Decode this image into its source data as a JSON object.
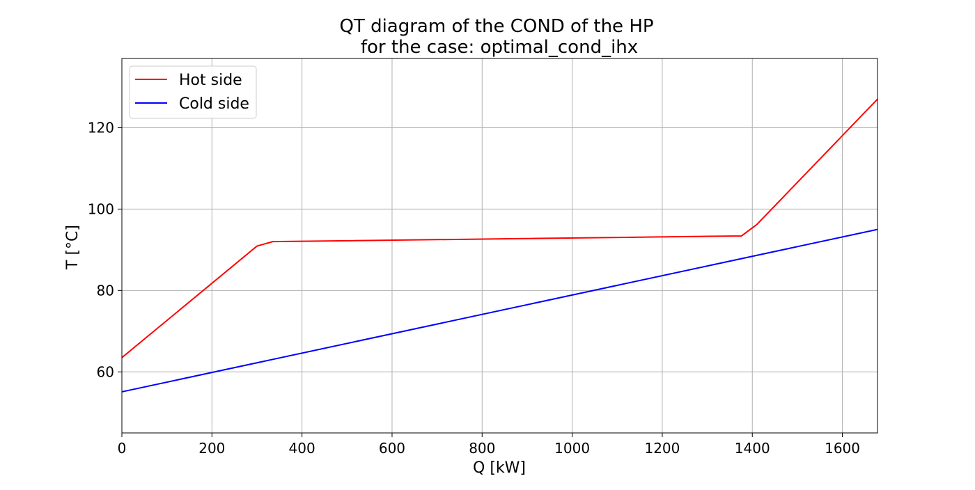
{
  "chart_data": {
    "type": "line",
    "title": [
      "QT diagram of the COND of the HP",
      "for the case: optimal_cond_ihx"
    ],
    "xlabel": "Q [kW]",
    "ylabel": "T [°C]",
    "xlim": [
      0,
      1678
    ],
    "ylim": [
      45,
      137
    ],
    "xticks": [
      0,
      200,
      400,
      600,
      800,
      1000,
      1200,
      1400,
      1600
    ],
    "yticks": [
      60,
      80,
      100,
      120
    ],
    "grid": true,
    "legend_position": "upper-left",
    "series": [
      {
        "name": "Hot side",
        "color": "#ff0000",
        "points": [
          [
            0,
            63.5
          ],
          [
            300,
            90.9
          ],
          [
            335,
            92.0
          ],
          [
            1376,
            93.4
          ],
          [
            1410,
            96.2
          ],
          [
            1678,
            127.0
          ]
        ]
      },
      {
        "name": "Cold side",
        "color": "#0000ff",
        "points": [
          [
            0,
            55.1
          ],
          [
            1678,
            95.0
          ]
        ]
      }
    ]
  }
}
